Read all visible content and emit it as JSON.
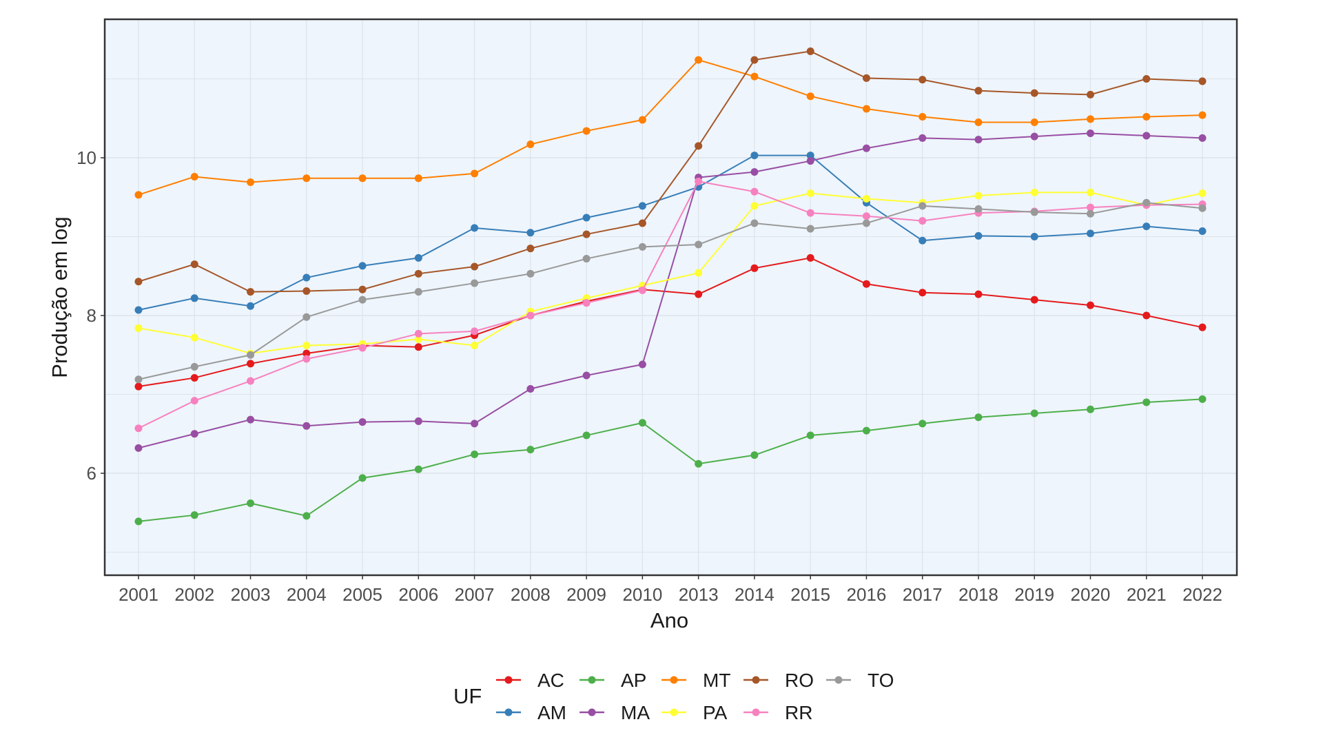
{
  "chart_data": {
    "type": "line",
    "title": "",
    "xlabel": "Ano",
    "ylabel": "Produção em log",
    "ylim": [
      5.1,
      11.7
    ],
    "yticks": [
      6,
      8,
      10
    ],
    "grid": true,
    "legend_title": "UF",
    "legend_position": "bottom",
    "x": [
      "2001",
      "2002",
      "2003",
      "2004",
      "2005",
      "2006",
      "2007",
      "2008",
      "2009",
      "2010",
      "2013",
      "2014",
      "2015",
      "2016",
      "2017",
      "2018",
      "2019",
      "2020",
      "2021",
      "2022"
    ],
    "series": [
      {
        "name": "AC",
        "color": "#e41a1c",
        "values": [
          7.1,
          7.21,
          7.39,
          7.52,
          7.62,
          7.6,
          7.75,
          8.0,
          8.18,
          8.33,
          8.27,
          8.6,
          8.73,
          8.4,
          8.29,
          8.27,
          8.2,
          8.13,
          8.0,
          7.85
        ]
      },
      {
        "name": "AM",
        "color": "#377eb8",
        "values": [
          8.07,
          8.22,
          8.12,
          8.48,
          8.63,
          8.73,
          9.11,
          9.05,
          9.24,
          9.39,
          9.63,
          10.03,
          10.03,
          9.43,
          8.95,
          9.01,
          9.0,
          9.04,
          9.13,
          9.07
        ]
      },
      {
        "name": "AP",
        "color": "#4daf4a",
        "values": [
          5.39,
          5.47,
          5.62,
          5.46,
          5.94,
          6.05,
          6.24,
          6.3,
          6.48,
          6.64,
          6.12,
          6.23,
          6.48,
          6.54,
          6.63,
          6.71,
          6.76,
          6.81,
          6.9,
          6.94
        ]
      },
      {
        "name": "MA",
        "color": "#984ea3",
        "values": [
          6.32,
          6.5,
          6.68,
          6.6,
          6.65,
          6.66,
          6.63,
          7.07,
          7.24,
          7.38,
          9.75,
          9.82,
          9.96,
          10.12,
          10.25,
          10.23,
          10.27,
          10.31,
          10.28,
          10.25
        ]
      },
      {
        "name": "MT",
        "color": "#ff7f00",
        "values": [
          9.53,
          9.76,
          9.69,
          9.74,
          9.74,
          9.74,
          9.8,
          10.17,
          10.34,
          10.48,
          11.24,
          11.03,
          10.78,
          10.62,
          10.52,
          10.45,
          10.45,
          10.49,
          10.52,
          10.54
        ]
      },
      {
        "name": "PA",
        "color": "#ffff33",
        "values": [
          7.84,
          7.72,
          7.52,
          7.62,
          7.64,
          7.7,
          7.62,
          8.05,
          8.22,
          8.38,
          8.54,
          9.39,
          9.55,
          9.48,
          9.43,
          9.52,
          9.56,
          9.56,
          9.4,
          9.55
        ]
      },
      {
        "name": "RO",
        "color": "#a65628",
        "values": [
          8.43,
          8.65,
          8.3,
          8.31,
          8.33,
          8.53,
          8.62,
          8.85,
          9.03,
          9.17,
          10.15,
          11.24,
          11.35,
          11.01,
          10.99,
          10.85,
          10.82,
          10.8,
          11.0,
          10.97
        ]
      },
      {
        "name": "RR",
        "color": "#f781bf",
        "values": [
          6.57,
          6.92,
          7.17,
          7.45,
          7.59,
          7.77,
          7.8,
          8.0,
          8.16,
          8.32,
          9.7,
          9.57,
          9.3,
          9.26,
          9.2,
          9.3,
          9.32,
          9.37,
          9.4,
          9.41
        ]
      },
      {
        "name": "TO",
        "color": "#999999",
        "values": [
          7.19,
          7.35,
          7.5,
          7.98,
          8.2,
          8.3,
          8.41,
          8.53,
          8.72,
          8.87,
          8.9,
          9.17,
          9.1,
          9.17,
          9.39,
          9.35,
          9.31,
          9.29,
          9.43,
          9.36
        ]
      }
    ],
    "legend_order": [
      [
        "AC",
        "AP",
        "MT",
        "RO",
        "TO"
      ],
      [
        "AM",
        "MA",
        "PA",
        "RR"
      ]
    ]
  },
  "colors": {
    "panel_background": "#eef5fc",
    "gridline": "#dde3ea",
    "panel_border": "#333333"
  }
}
